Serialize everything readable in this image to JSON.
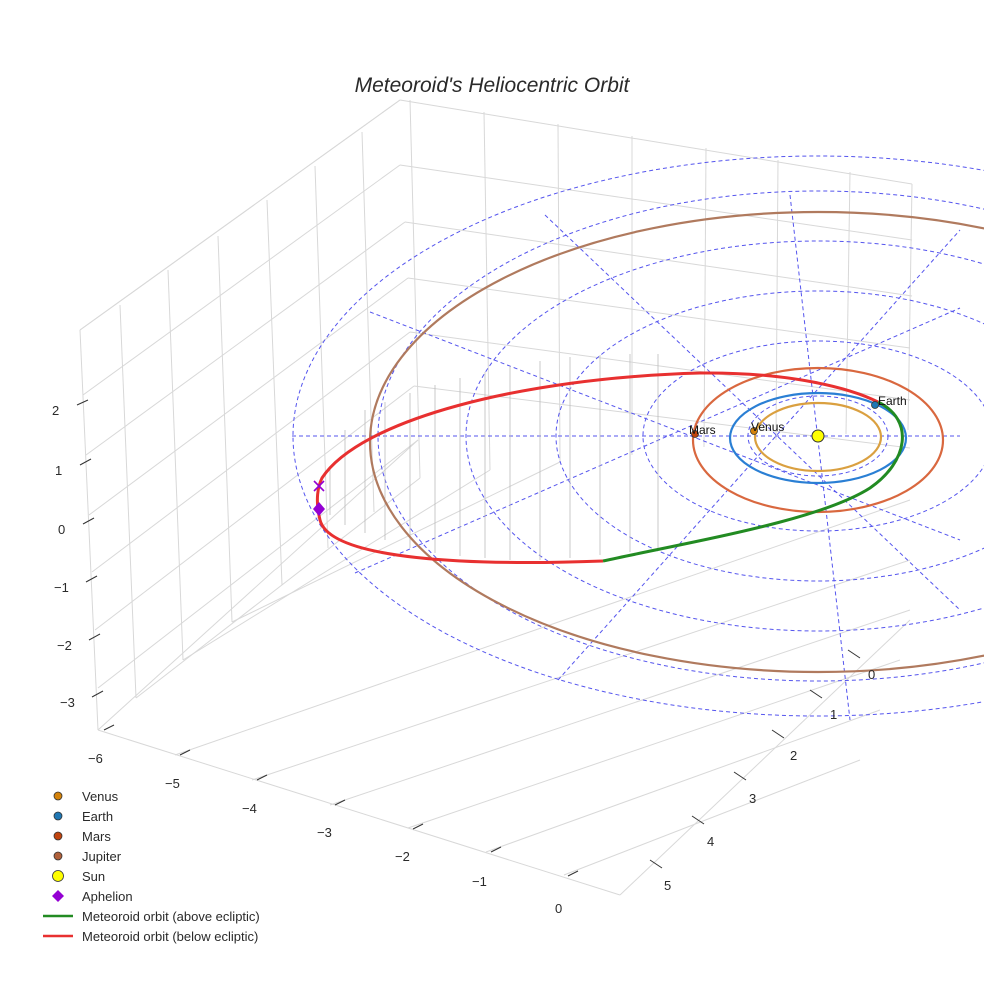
{
  "chart_data": {
    "type": "line",
    "title": "Meteoroid's Heliocentric Orbit",
    "x_ticks": [
      "−6",
      "−5",
      "−4",
      "−3",
      "−2",
      "−1",
      "0"
    ],
    "y_ticks": [
      "0",
      "1",
      "2",
      "3",
      "4",
      "5"
    ],
    "z_ticks": [
      "2",
      "1",
      "0",
      "−1",
      "−2",
      "−3"
    ],
    "planet_labels": [
      "Mars",
      "Venus",
      "Earth"
    ],
    "legend": [
      {
        "name": "Venus",
        "symbol": "circle",
        "color": "#d4820a"
      },
      {
        "name": "Earth",
        "symbol": "circle",
        "color": "#1f77b4"
      },
      {
        "name": "Mars",
        "symbol": "circle",
        "color": "#c1440e"
      },
      {
        "name": "Jupiter",
        "symbol": "circle",
        "color": "#b0603a"
      },
      {
        "name": "Sun",
        "symbol": "circle",
        "color": "#ffff00"
      },
      {
        "name": "Aphelion",
        "symbol": "diamond",
        "color": "#9400d3"
      },
      {
        "name": "Meteoroid orbit (above ecliptic)",
        "symbol": "line",
        "color": "#228b22"
      },
      {
        "name": "Meteoroid orbit (below ecliptic)",
        "symbol": "line",
        "color": "#e83030"
      }
    ],
    "orbit_colors": {
      "venus": "#daa040",
      "earth": "#2a7fd4",
      "mars": "#d9683f",
      "jupiter": "#b07a5e"
    }
  }
}
